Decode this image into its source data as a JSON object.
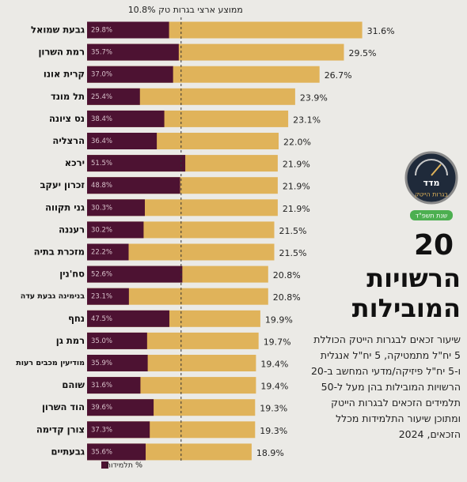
{
  "chart_data": {
    "type": "bar",
    "average": {
      "label": "ממוצע ארצי בגרות טק 10.8%",
      "value": 10.8
    },
    "categories": [
      "גבעת שמואל",
      "רמת השרון",
      "קרית אונו",
      "תל מונד",
      "נס ציונה",
      "הרצליה",
      "ירכא",
      "זכרון יעקב",
      "גני תקווה",
      "רעננה",
      "מזכרת בתיה",
      "סח'נין",
      "בנימינה גבעת עדה",
      "נחף",
      "רמת גן",
      "מודיעין מכבים רעות",
      "שוהם",
      "הוד השרון",
      "צורן קדימה",
      "גבעתיים"
    ],
    "values": [
      31.6,
      29.5,
      26.7,
      23.9,
      23.1,
      22.0,
      21.9,
      21.9,
      21.9,
      21.5,
      21.5,
      20.8,
      20.8,
      19.9,
      19.7,
      19.4,
      19.4,
      19.3,
      19.3,
      18.9
    ],
    "value_labels": [
      "31.6%",
      "29.5%",
      "26.7%",
      "23.9%",
      "23.1%",
      "22.0%",
      "21.9%",
      "21.9%",
      "21.9%",
      "21.5%",
      "21.5%",
      "20.8%",
      "20.8%",
      "19.9%",
      "19.7%",
      "19.4%",
      "19.4%",
      "19.3%",
      "19.3%",
      "18.9%"
    ],
    "color": "#e0b35a",
    "girls": {
      "name": "% תלמידות",
      "color": "#4d1232",
      "values": [
        29.8,
        35.7,
        37.0,
        25.4,
        38.4,
        36.4,
        51.5,
        48.8,
        30.3,
        30.2,
        22.2,
        52.6,
        23.1,
        47.5,
        35.0,
        35.9,
        31.6,
        39.6,
        37.3,
        35.6
      ],
      "value_labels": [
        "29.8%",
        "35.7%",
        "37.0%",
        "25.4%",
        "38.4%",
        "36.4%",
        "51.5%",
        "48.8%",
        "30.3%",
        "30.2%",
        "22.2%",
        "52.6%",
        "23.1%",
        "47.5%",
        "35.0%",
        "35.9%",
        "31.6%",
        "39.6%",
        "37.3%",
        "35.6%"
      ]
    }
  },
  "badge": {
    "line1": "מדד",
    "line2": "בגרות הייטק",
    "tag": "שנת תשפ\"ד"
  },
  "heading": {
    "number": "20",
    "line1": "הרשויות",
    "line2": "המובילות"
  },
  "description": [
    "שיעור זכאים לבגרות הייטק הכוללת",
    "5 יח\"ל מתמטיקה, 5 יח\"ל אנגלית",
    "ו-5 יח\"ל פיזיקה/מדעי המחשב ב-20",
    "הרשויות המובילות בהן מעל ל-50",
    "תלמידים הזכאים לבגרות הייטק",
    "ומתוכן שיעור התלמידות מכלל",
    "הזכאים, 2024"
  ]
}
